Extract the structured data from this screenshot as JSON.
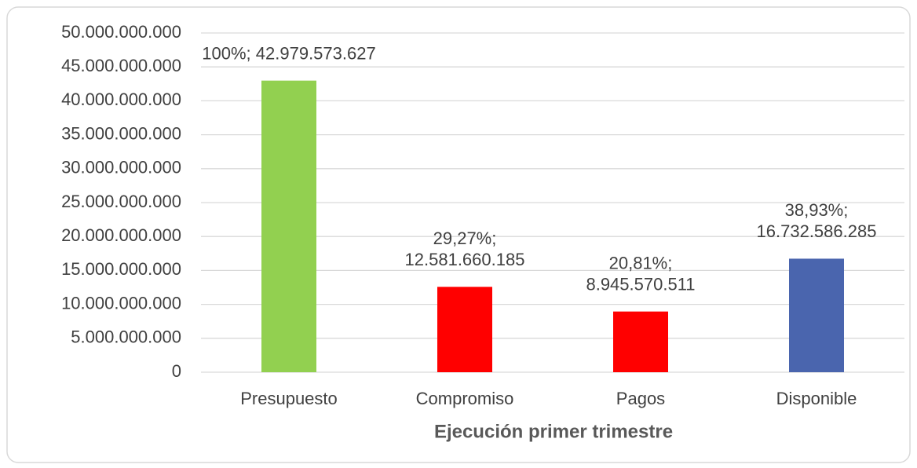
{
  "chart_data": {
    "type": "bar",
    "x_label": "Ejecución primer trimestre",
    "categories": [
      "Presupuesto",
      "Compromiso",
      "Pagos",
      "Disponible"
    ],
    "values": [
      42979573627,
      12581660185,
      8945570511,
      16732586285
    ],
    "value_labels": [
      [
        "100%; 42.979.573.627"
      ],
      [
        "29,27%;",
        "12.581.660.185"
      ],
      [
        "20,81%;",
        "8.945.570.511"
      ],
      [
        "38,93%;",
        "16.732.586.285"
      ]
    ],
    "colors": [
      "#92d050",
      "#ff0000",
      "#ff0000",
      "#4a65ae"
    ],
    "ylim": [
      0,
      50000000000
    ],
    "yticks": [
      0,
      {
        "value": 5000000000,
        "label": "5.000.000.000"
      },
      {
        "value": 10000000000,
        "label": "10.000.000.000"
      },
      {
        "value": 15000000000,
        "label": "15.000.000.000"
      },
      {
        "value": 20000000000,
        "label": "20.000.000.000"
      },
      {
        "value": 25000000000,
        "label": "25.000.000.000"
      },
      {
        "value": 30000000000,
        "label": "30.000.000.000"
      },
      {
        "value": 35000000000,
        "label": "35.000.000.000"
      },
      {
        "value": 40000000000,
        "label": "40.000.000.000"
      },
      {
        "value": 45000000000,
        "label": "45.000.000.000"
      },
      {
        "value": 50000000000,
        "label": "50.000.000.000"
      }
    ],
    "grid": true
  }
}
